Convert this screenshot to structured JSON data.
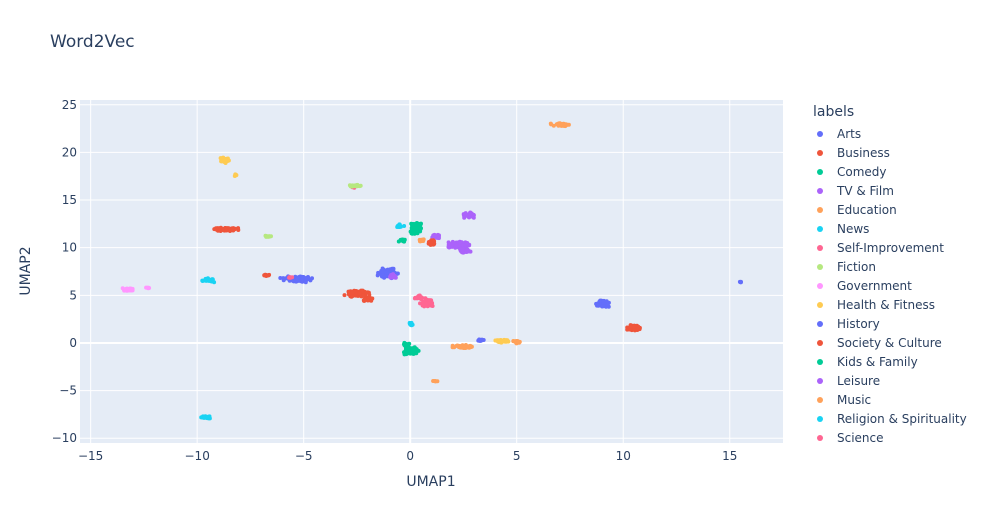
{
  "chart_data": {
    "type": "scatter",
    "title": "Word2Vec",
    "xlabel": "UMAP1",
    "ylabel": "UMAP2",
    "xlim": [
      -15.5,
      17.5
    ],
    "ylim": [
      -10.5,
      25.5
    ],
    "xticks": [
      -15,
      -10,
      -5,
      0,
      5,
      10,
      15
    ],
    "yticks": [
      -10,
      -5,
      0,
      5,
      10,
      15,
      20,
      25
    ],
    "grid": true,
    "legend_title": "labels",
    "legend_position": "right",
    "series": [
      {
        "name": "Arts",
        "color": "#636efa",
        "clusters": [
          [
            -5.3,
            6.7,
            1.2,
            0.5
          ],
          [
            -1.0,
            7.3,
            0.8,
            0.8
          ],
          [
            9.0,
            4.1,
            0.6,
            0.6
          ],
          [
            15.5,
            6.4,
            0.1,
            0.1
          ]
        ]
      },
      {
        "name": "Business",
        "color": "#ef553b",
        "clusters": [
          [
            -8.7,
            11.9,
            1.0,
            0.4
          ],
          [
            -2.5,
            5.2,
            1.0,
            0.6
          ],
          [
            10.5,
            1.6,
            0.5,
            0.6
          ],
          [
            -6.7,
            7.1,
            0.3,
            0.2
          ]
        ]
      },
      {
        "name": "Comedy",
        "color": "#00cc96",
        "clusters": [
          [
            0.3,
            12.2,
            0.5,
            0.8
          ],
          [
            0.0,
            -0.8,
            0.6,
            0.8
          ],
          [
            -0.4,
            10.8,
            0.3,
            0.3
          ]
        ]
      },
      {
        "name": "TV & Film",
        "color": "#ab63fa",
        "clusters": [
          [
            2.8,
            13.4,
            0.6,
            0.4
          ],
          [
            2.3,
            10.3,
            0.9,
            0.6
          ],
          [
            1.2,
            11.2,
            0.4,
            0.4
          ]
        ]
      },
      {
        "name": "Education",
        "color": "#ffa15a",
        "clusters": [
          [
            7.1,
            22.9,
            0.8,
            0.3
          ],
          [
            2.4,
            -0.4,
            0.9,
            0.3
          ],
          [
            1.2,
            -4.0,
            0.2,
            0.1
          ]
        ]
      },
      {
        "name": "News",
        "color": "#19d3f3",
        "clusters": [
          [
            -0.5,
            12.3,
            0.3,
            0.3
          ],
          [
            0.0,
            2.0,
            0.2,
            0.4
          ]
        ]
      },
      {
        "name": "Self-Improvement",
        "color": "#ff6692",
        "clusters": [
          [
            0.8,
            4.2,
            0.5,
            0.7
          ],
          [
            -2.7,
            16.4,
            0.2,
            0.2
          ]
        ]
      },
      {
        "name": "Fiction",
        "color": "#b6e880",
        "clusters": [
          [
            -2.6,
            16.5,
            0.6,
            0.2
          ],
          [
            -6.7,
            11.2,
            0.3,
            0.2
          ]
        ]
      },
      {
        "name": "Government",
        "color": "#ff97ff",
        "clusters": [
          [
            -13.2,
            5.6,
            0.6,
            0.3
          ],
          [
            -12.3,
            5.8,
            0.2,
            0.1
          ]
        ]
      },
      {
        "name": "Health & Fitness",
        "color": "#fecb52",
        "clusters": [
          [
            -8.7,
            19.2,
            0.4,
            0.5
          ],
          [
            4.3,
            0.2,
            0.8,
            0.3
          ],
          [
            -8.2,
            17.6,
            0.1,
            0.3
          ]
        ]
      },
      {
        "name": "History",
        "color": "#636efa",
        "clusters": [
          [
            -5.0,
            6.8,
            0.5,
            0.3
          ],
          [
            3.3,
            0.3,
            0.3,
            0.2
          ]
        ]
      },
      {
        "name": "Society & Culture",
        "color": "#ef553b",
        "clusters": [
          [
            -2.0,
            4.6,
            0.4,
            0.4
          ],
          [
            1.0,
            10.5,
            0.3,
            0.5
          ]
        ]
      },
      {
        "name": "Kids & Family",
        "color": "#00cc96",
        "clusters": [
          [
            0.2,
            11.7,
            0.4,
            0.5
          ],
          [
            -0.2,
            -0.2,
            0.3,
            0.4
          ]
        ]
      },
      {
        "name": "Leisure",
        "color": "#ab63fa",
        "clusters": [
          [
            2.6,
            9.7,
            0.5,
            0.4
          ],
          [
            -0.8,
            7.0,
            0.3,
            0.4
          ]
        ]
      },
      {
        "name": "Music",
        "color": "#ffa15a",
        "clusters": [
          [
            0.5,
            10.8,
            0.3,
            0.3
          ],
          [
            5.0,
            0.1,
            0.3,
            0.3
          ]
        ]
      },
      {
        "name": "Religion & Spirituality",
        "color": "#19d3f3",
        "clusters": [
          [
            -9.6,
            -7.8,
            0.5,
            0.3
          ],
          [
            -9.5,
            6.6,
            0.5,
            0.3
          ]
        ]
      },
      {
        "name": "Science",
        "color": "#ff6692",
        "clusters": [
          [
            0.4,
            4.8,
            0.3,
            0.4
          ],
          [
            -5.6,
            6.9,
            0.2,
            0.2
          ]
        ]
      }
    ]
  }
}
